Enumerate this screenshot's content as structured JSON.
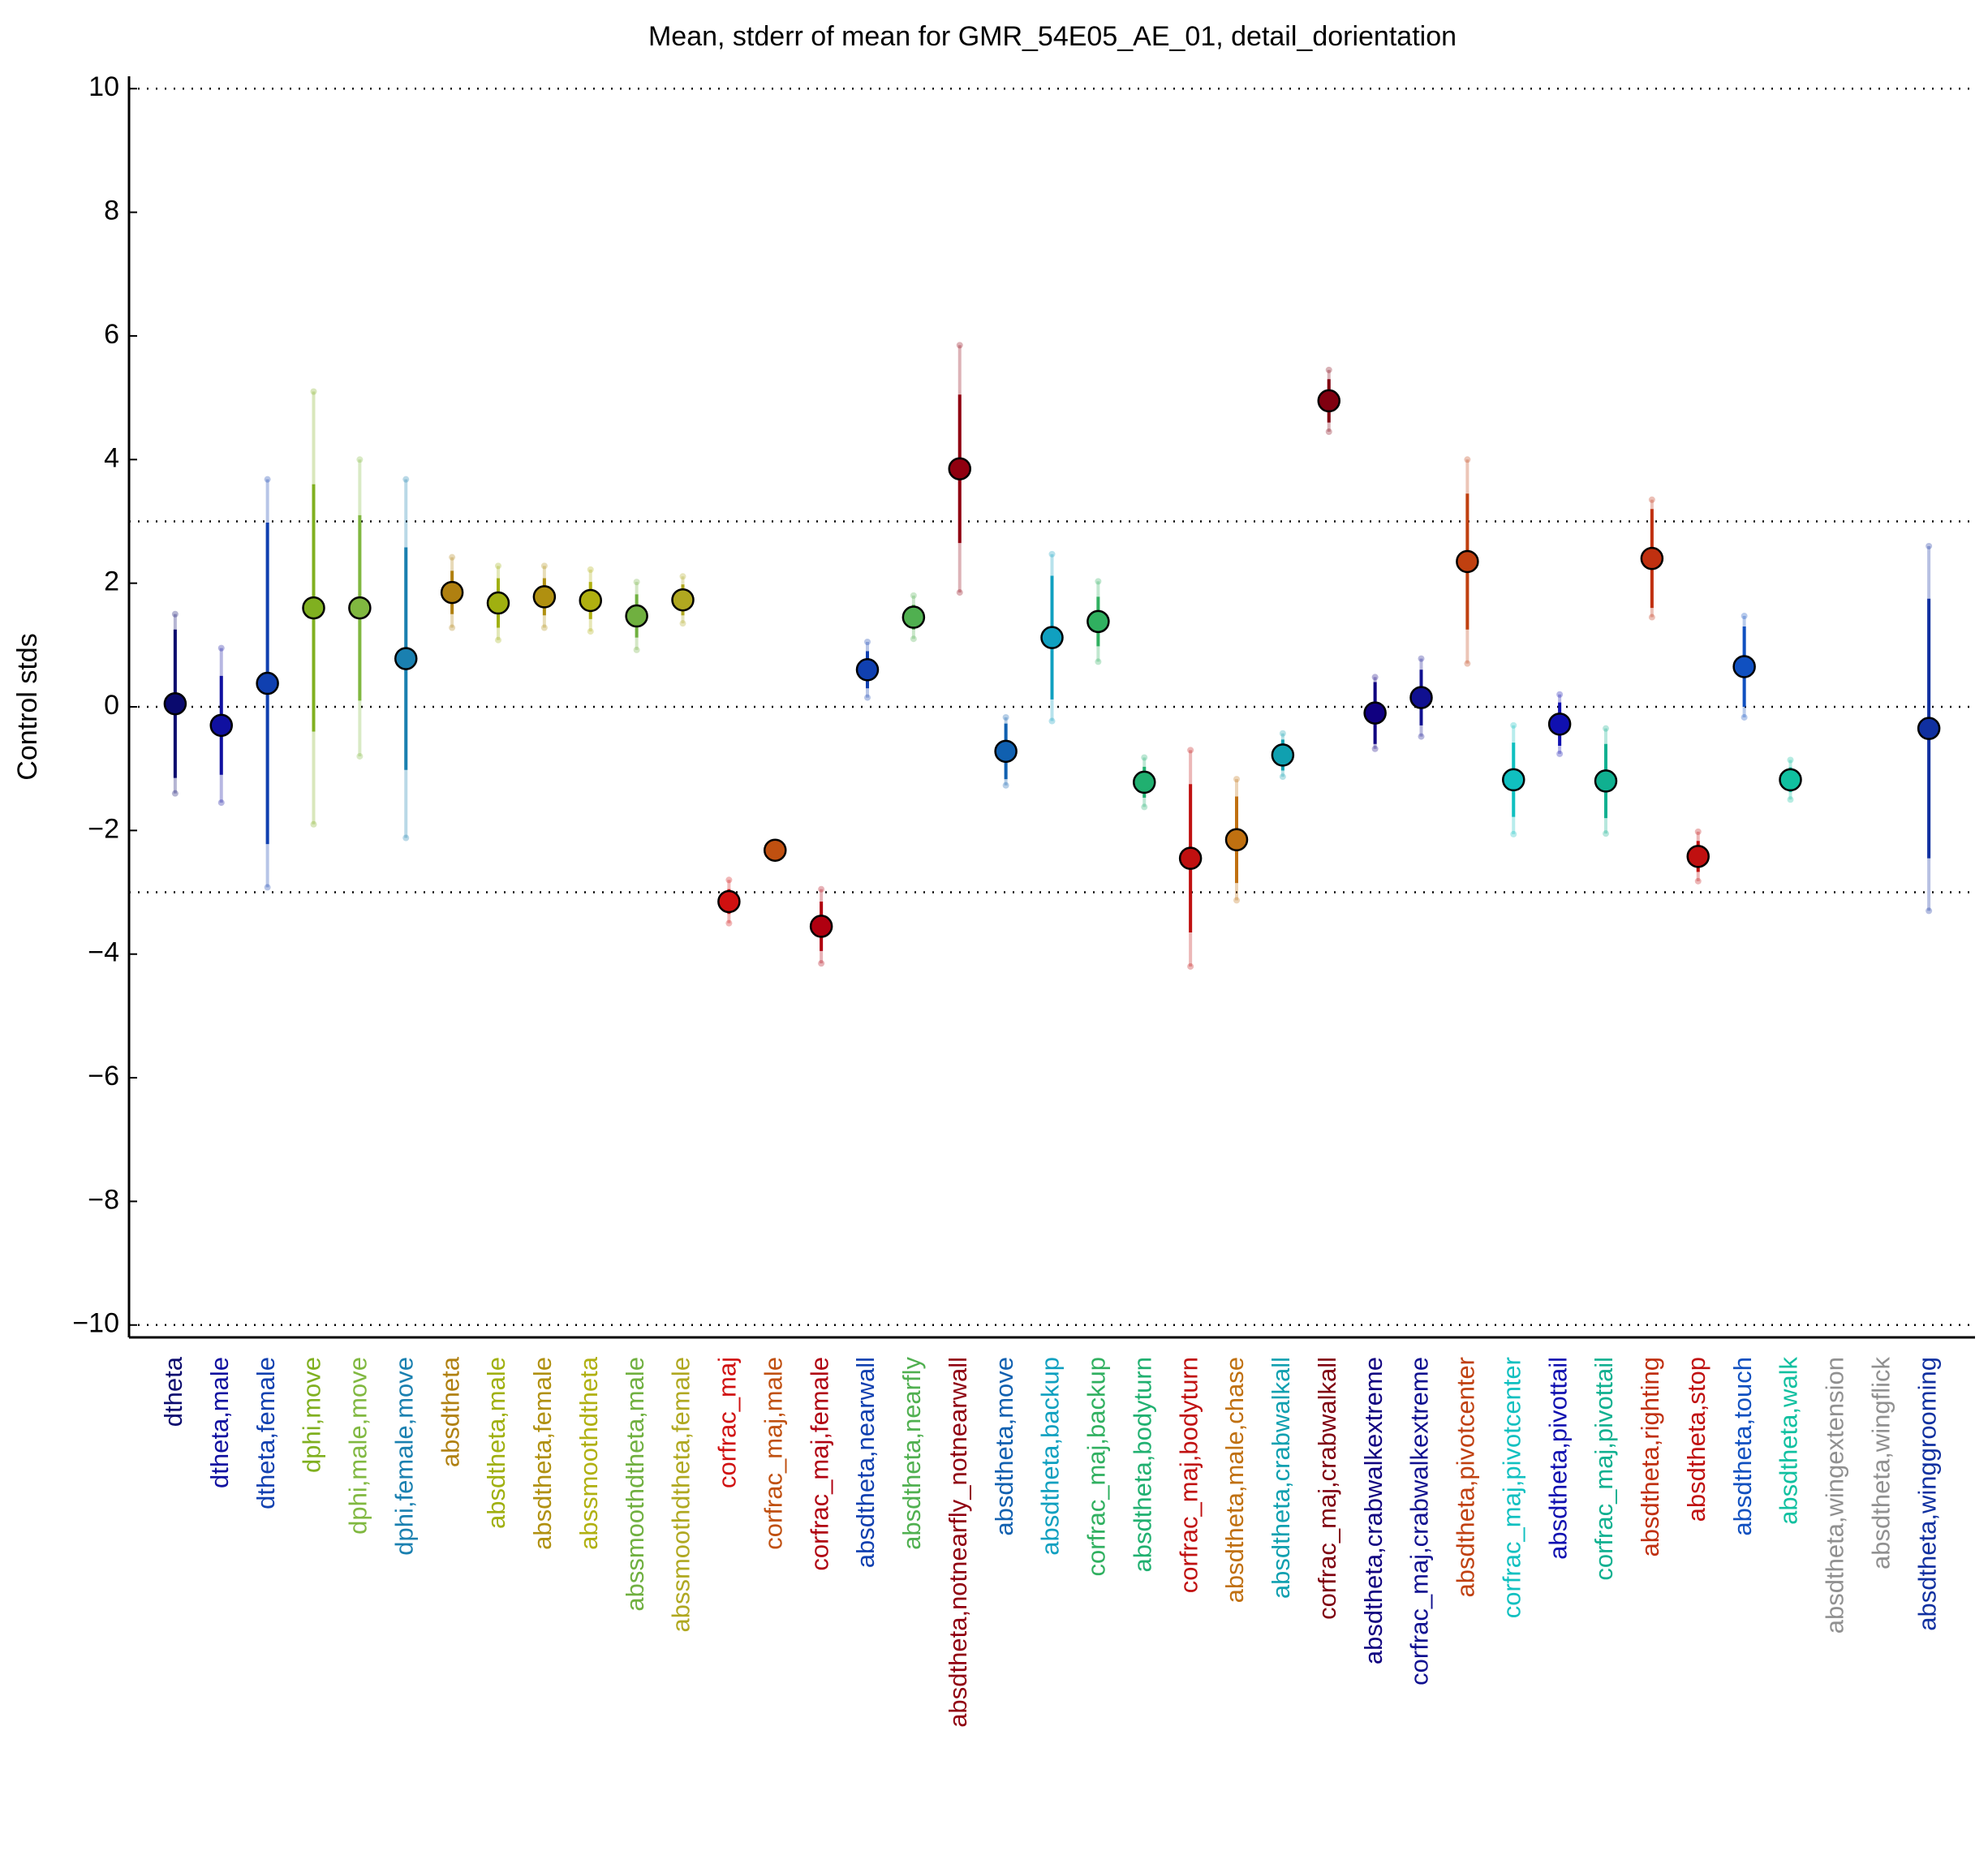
{
  "chart_data": {
    "type": "errorbar",
    "title": "Mean, stderr of mean for GMR_54E05_AE_01, detail_dorientation",
    "ylabel": "Control stds",
    "categories": [
      "dtheta",
      "dtheta,male",
      "dtheta,female",
      "dphi,move",
      "dphi,male,move",
      "dphi,female,move",
      "absdtheta",
      "absdtheta,male",
      "absdtheta,female",
      "abssmoothdtheta",
      "abssmoothdtheta,male",
      "abssmoothdtheta,female",
      "corfrac_maj",
      "corfrac_maj,male",
      "corfrac_maj,female",
      "absdtheta,nearwall",
      "absdtheta,nearfly",
      "absdtheta,notnearfly_notnearwall",
      "absdtheta,move",
      "absdtheta,backup",
      "corfrac_maj,backup",
      "absdtheta,bodyturn",
      "corfrac_maj,bodyturn",
      "absdtheta,male,chase",
      "absdtheta,crabwalkall",
      "corfrac_maj,crabwalkall",
      "absdtheta,crabwalkextreme",
      "corfrac_maj,crabwalkextreme",
      "absdtheta,pivotcenter",
      "corfrac_maj,pivotcenter",
      "absdtheta,pivottail",
      "corfrac_maj,pivottail",
      "absdtheta,righting",
      "absdtheta,stop",
      "absdtheta,touch",
      "absdtheta,walk",
      "absdtheta,wingextension",
      "absdtheta,wingflick",
      "absdtheta,winggrooming"
    ],
    "values": [
      0.05,
      -0.3,
      0.38,
      1.6,
      1.6,
      0.78,
      1.85,
      1.68,
      1.78,
      1.72,
      1.47,
      1.73,
      -3.15,
      -2.32,
      -3.55,
      0.6,
      1.45,
      3.85,
      -0.72,
      1.12,
      1.38,
      -1.22,
      -2.45,
      -2.15,
      -0.78,
      4.95,
      -0.1,
      0.15,
      2.35,
      -1.18,
      -0.28,
      -1.2,
      2.4,
      -2.42,
      0.65,
      -1.18,
      null,
      null,
      -0.35
    ],
    "errors": [
      1.2,
      0.8,
      2.6,
      2.0,
      1.5,
      1.8,
      0.35,
      0.4,
      0.3,
      0.3,
      0.35,
      0.25,
      0.2,
      0.05,
      0.4,
      0.3,
      0.2,
      1.2,
      0.45,
      1.0,
      0.4,
      0.25,
      1.2,
      0.7,
      0.25,
      0.35,
      0.5,
      0.45,
      1.1,
      0.6,
      0.35,
      0.6,
      0.8,
      0.25,
      0.65,
      0.2,
      null,
      null,
      2.1
    ],
    "errors_outer": [
      1.45,
      1.25,
      3.3,
      3.5,
      2.4,
      2.9,
      0.57,
      0.6,
      0.5,
      0.5,
      0.55,
      0.38,
      0.35,
      0.07,
      0.6,
      0.45,
      0.35,
      2.0,
      0.55,
      1.35,
      0.65,
      0.4,
      1.75,
      0.98,
      0.35,
      0.5,
      0.58,
      0.63,
      1.65,
      0.88,
      0.48,
      0.85,
      0.95,
      0.4,
      0.82,
      0.32,
      null,
      null,
      2.95
    ],
    "colors": [
      "#0a0a6e",
      "#1010a0",
      "#1040b0",
      "#80b020",
      "#80b840",
      "#1a80b0",
      "#b08010",
      "#a0b010",
      "#b09010",
      "#b0b010",
      "#70b040",
      "#b0a820",
      "#d01010",
      "#c05010",
      "#b00010",
      "#1040b0",
      "#50b050",
      "#900010",
      "#1060b0",
      "#10a0c0",
      "#30b060",
      "#20b070",
      "#c01010",
      "#c07010",
      "#10a0b0",
      "#800010",
      "#100080",
      "#101090",
      "#c04010",
      "#10c0c0",
      "#1010b0",
      "#10b090",
      "#c03010",
      "#c01010",
      "#1050c0",
      "#10c0a0",
      "#909090",
      "#909090",
      "#1030a0"
    ],
    "ylim": [
      -10.2,
      10.2
    ],
    "yticks": [
      {
        "value": -10,
        "label": "−10"
      },
      {
        "value": -8,
        "label": "−8"
      },
      {
        "value": -6,
        "label": "−6"
      },
      {
        "value": -4,
        "label": "−4"
      },
      {
        "value": -2,
        "label": "−2"
      },
      0,
      2,
      4,
      6,
      8,
      10
    ],
    "hlines": [
      -10,
      -3,
      0,
      3,
      10
    ]
  }
}
